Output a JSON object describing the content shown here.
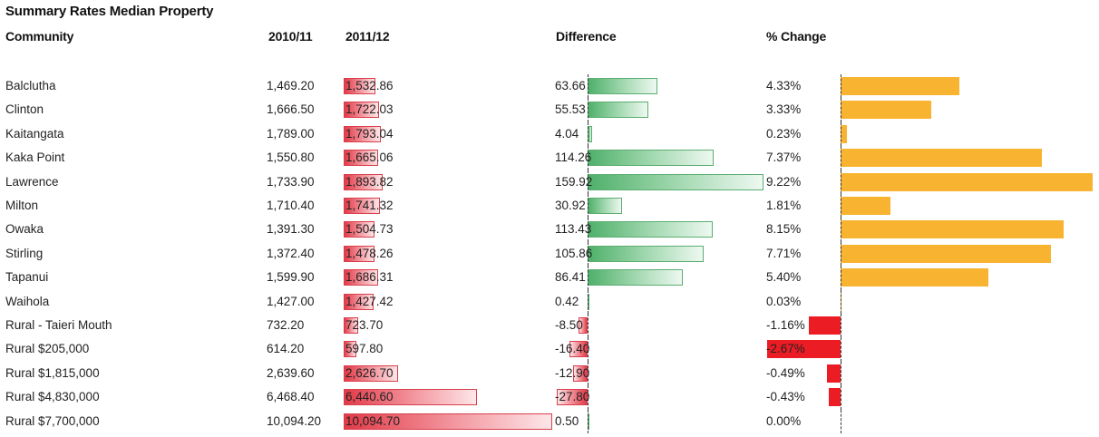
{
  "title": "Summary Rates Median Property",
  "headers": {
    "community": "Community",
    "y2010": "2010/11",
    "y2011": "2011/12",
    "difference": "Difference",
    "pct_change": "% Change"
  },
  "colors": {
    "bar_2011": "#e23a48",
    "difference_positive": "#4fb06a",
    "difference_negative": "#e23a48",
    "pct_positive": "#f8b330",
    "pct_negative": "#ec1c24"
  },
  "chart_data": {
    "type": "table",
    "columns": [
      "Community",
      "2010/11",
      "2011/12",
      "Difference",
      "% Change"
    ],
    "rows": [
      {
        "community": "Balclutha",
        "y2010": "1,469.20",
        "y2011": "1,532.86",
        "difference": "63.66",
        "pct": "4.33%",
        "v2011": 1532.86,
        "vdiff": 63.66,
        "vpct": 4.33
      },
      {
        "community": "Clinton",
        "y2010": "1,666.50",
        "y2011": "1,722.03",
        "difference": "55.53",
        "pct": "3.33%",
        "v2011": 1722.03,
        "vdiff": 55.53,
        "vpct": 3.33
      },
      {
        "community": "Kaitangata",
        "y2010": "1,789.00",
        "y2011": "1,793.04",
        "difference": "4.04",
        "pct": "0.23%",
        "v2011": 1793.04,
        "vdiff": 4.04,
        "vpct": 0.23
      },
      {
        "community": "Kaka Point",
        "y2010": "1,550.80",
        "y2011": "1,665.06",
        "difference": "114.26",
        "pct": "7.37%",
        "v2011": 1665.06,
        "vdiff": 114.26,
        "vpct": 7.37
      },
      {
        "community": "Lawrence",
        "y2010": "1,733.90",
        "y2011": "1,893.82",
        "difference": "159.92",
        "pct": "9.22%",
        "v2011": 1893.82,
        "vdiff": 159.92,
        "vpct": 9.22
      },
      {
        "community": "Milton",
        "y2010": "1,710.40",
        "y2011": "1,741.32",
        "difference": "30.92",
        "pct": "1.81%",
        "v2011": 1741.32,
        "vdiff": 30.92,
        "vpct": 1.81
      },
      {
        "community": "Owaka",
        "y2010": "1,391.30",
        "y2011": "1,504.73",
        "difference": "113.43",
        "pct": "8.15%",
        "v2011": 1504.73,
        "vdiff": 113.43,
        "vpct": 8.15
      },
      {
        "community": "Stirling",
        "y2010": "1,372.40",
        "y2011": "1,478.26",
        "difference": "105.86",
        "pct": "7.71%",
        "v2011": 1478.26,
        "vdiff": 105.86,
        "vpct": 7.71
      },
      {
        "community": "Tapanui",
        "y2010": "1,599.90",
        "y2011": "1,686.31",
        "difference": "86.41",
        "pct": "5.40%",
        "v2011": 1686.31,
        "vdiff": 86.41,
        "vpct": 5.4
      },
      {
        "community": "Waihola",
        "y2010": "1,427.00",
        "y2011": "1,427.42",
        "difference": "0.42",
        "pct": "0.03%",
        "v2011": 1427.42,
        "vdiff": 0.42,
        "vpct": 0.03
      },
      {
        "community": "Rural - Taieri Mouth",
        "y2010": "732.20",
        "y2011": "723.70",
        "difference": "-8.50",
        "pct": "-1.16%",
        "v2011": 723.7,
        "vdiff": -8.5,
        "vpct": -1.16
      },
      {
        "community": "Rural $205,000",
        "y2010": "614.20",
        "y2011": "597.80",
        "difference": "-16.40",
        "pct": "-2.67%",
        "v2011": 597.8,
        "vdiff": -16.4,
        "vpct": -2.67
      },
      {
        "community": "Rural $1,815,000",
        "y2010": "2,639.60",
        "y2011": "2,626.70",
        "difference": "-12.90",
        "pct": "-0.49%",
        "v2011": 2626.7,
        "vdiff": -12.9,
        "vpct": -0.49
      },
      {
        "community": "Rural $4,830,000",
        "y2010": "6,468.40",
        "y2011": "6,440.60",
        "difference": "-27.80",
        "pct": "-0.43%",
        "v2011": 6440.6,
        "vdiff": -27.8,
        "vpct": -0.43
      },
      {
        "community": "Rural $7,700,000",
        "y2010": "10,094.20",
        "y2011": "10,094.70",
        "difference": "0.50",
        "pct": "0.00%",
        "v2011": 10094.7,
        "vdiff": 0.5,
        "vpct": 0.0
      }
    ]
  }
}
